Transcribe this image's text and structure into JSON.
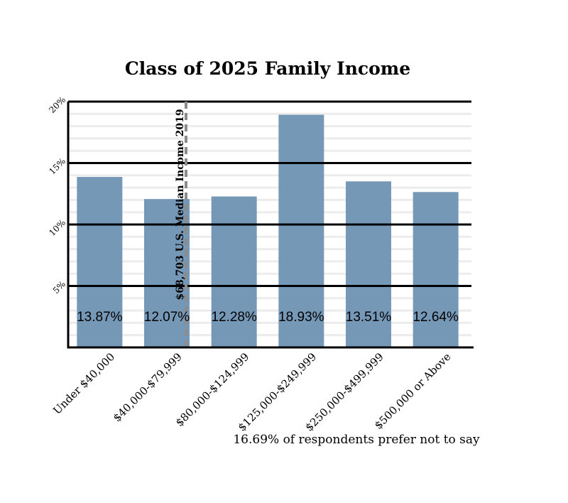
{
  "chart_data": {
    "type": "bar",
    "title": "Class of 2025 Family Income",
    "xlabel": "",
    "ylabel": "",
    "ylim": [
      0,
      20
    ],
    "yticks": [
      5,
      10,
      15,
      20
    ],
    "ytick_labels": [
      "5%",
      "10%",
      "15%",
      "20%"
    ],
    "categories": [
      "Under $40,000",
      "$40,000-$79,999",
      "$80,000-$124,999",
      "$125,000-$249,999",
      "$250,000-$499,999",
      "$500,000 or Above"
    ],
    "values": [
      13.87,
      12.07,
      12.28,
      18.93,
      13.51,
      12.64
    ],
    "value_labels": [
      "13.87%",
      "12.07%",
      "12.28%",
      "18.93%",
      "13.51%",
      "12.64%"
    ],
    "bar_color": "#7698b7",
    "grid": true,
    "reference_line": {
      "label": "$68,703 U.S. Median Income 2019",
      "color": "#8c8c8c",
      "style": "dashed"
    },
    "note": "16.69% of respondents prefer not to say"
  }
}
